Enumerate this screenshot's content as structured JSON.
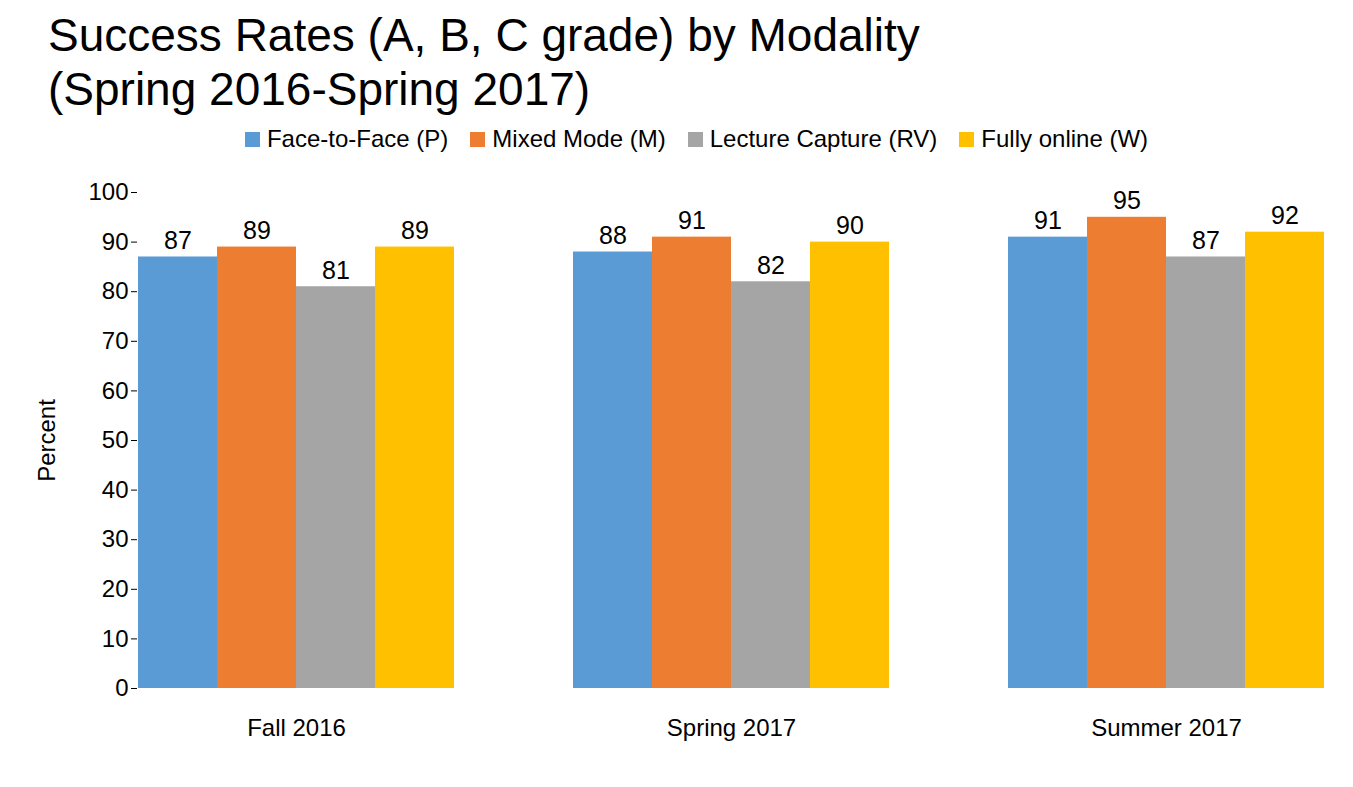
{
  "chart_data": {
    "type": "bar",
    "title": "Success Rates (A, B, C grade) by Modality\n(Spring 2016-Spring 2017)",
    "categories": [
      "Fall 2016",
      "Spring 2017",
      "Summer 2017"
    ],
    "series": [
      {
        "name": "Face-to-Face (P)",
        "color": "#5b9bd5",
        "values": [
          87,
          88,
          91
        ]
      },
      {
        "name": "Mixed Mode (M)",
        "color": "#ed7d31",
        "values": [
          89,
          91,
          95
        ]
      },
      {
        "name": "Lecture Capture (RV)",
        "color": "#a5a5a5",
        "values": [
          81,
          82,
          87
        ]
      },
      {
        "name": "Fully online (W)",
        "color": "#ffc000",
        "values": [
          89,
          90,
          92
        ]
      }
    ],
    "ylabel": "Percent",
    "ylim": [
      0,
      100
    ],
    "yticks": [
      0,
      10,
      20,
      30,
      40,
      50,
      60,
      70,
      80,
      90,
      100
    ],
    "grid": false,
    "legend": "top",
    "data_labels": true
  }
}
